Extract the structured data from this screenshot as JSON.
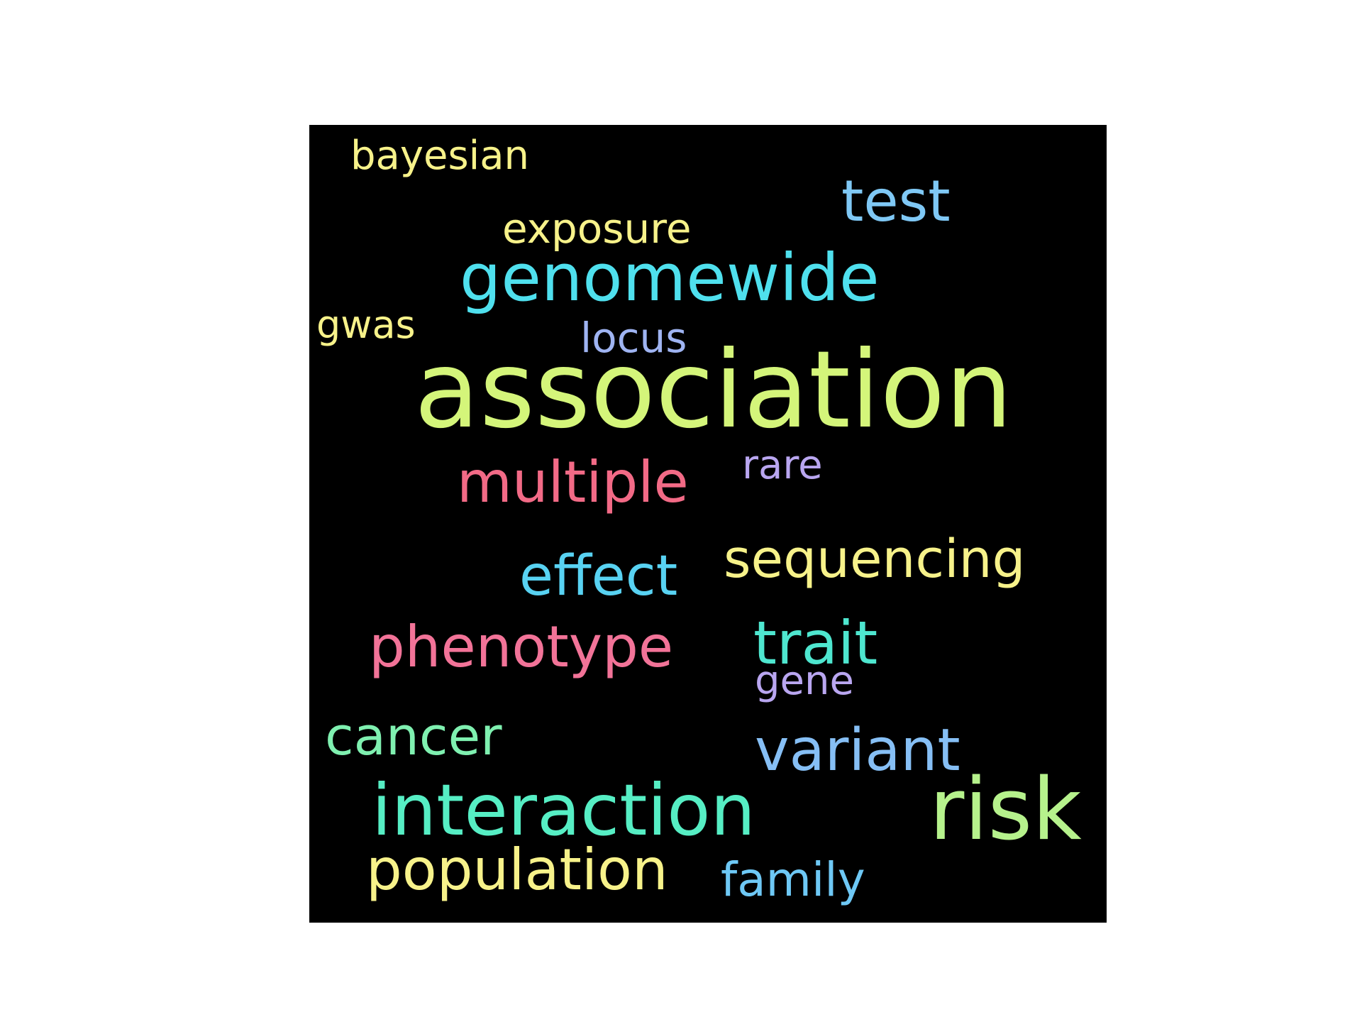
{
  "wordcloud": {
    "background_color": "#000000",
    "words": {
      "bayesian": {
        "text": "bayesian",
        "color": "#f7f28a"
      },
      "test": {
        "text": "test",
        "color": "#7fc8f5"
      },
      "exposure": {
        "text": "exposure",
        "color": "#f7f28a"
      },
      "genomewide": {
        "text": "genomewide",
        "color": "#4fe0ee"
      },
      "gwas": {
        "text": "gwas",
        "color": "#f7f28a"
      },
      "locus": {
        "text": "locus",
        "color": "#9fb4f2"
      },
      "association": {
        "text": "association",
        "color": "#d4f57a"
      },
      "multiple": {
        "text": "multiple",
        "color": "#f26a86"
      },
      "rare": {
        "text": "rare",
        "color": "#b9a6f0"
      },
      "sequencing": {
        "text": "sequencing",
        "color": "#f7f28a"
      },
      "effect": {
        "text": "effect",
        "color": "#58d2f2"
      },
      "phenotype": {
        "text": "phenotype",
        "color": "#f27398"
      },
      "trait": {
        "text": "trait",
        "color": "#4ee6cf"
      },
      "gene": {
        "text": "gene",
        "color": "#b9a6f0"
      },
      "cancer": {
        "text": "cancer",
        "color": "#7ff0b0"
      },
      "variant": {
        "text": "variant",
        "color": "#86bff5"
      },
      "interaction": {
        "text": "interaction",
        "color": "#56eec4"
      },
      "risk": {
        "text": "risk",
        "color": "#b6f28c"
      },
      "population": {
        "text": "population",
        "color": "#f7f28a"
      },
      "family": {
        "text": "family",
        "color": "#6ec8f5"
      }
    }
  }
}
